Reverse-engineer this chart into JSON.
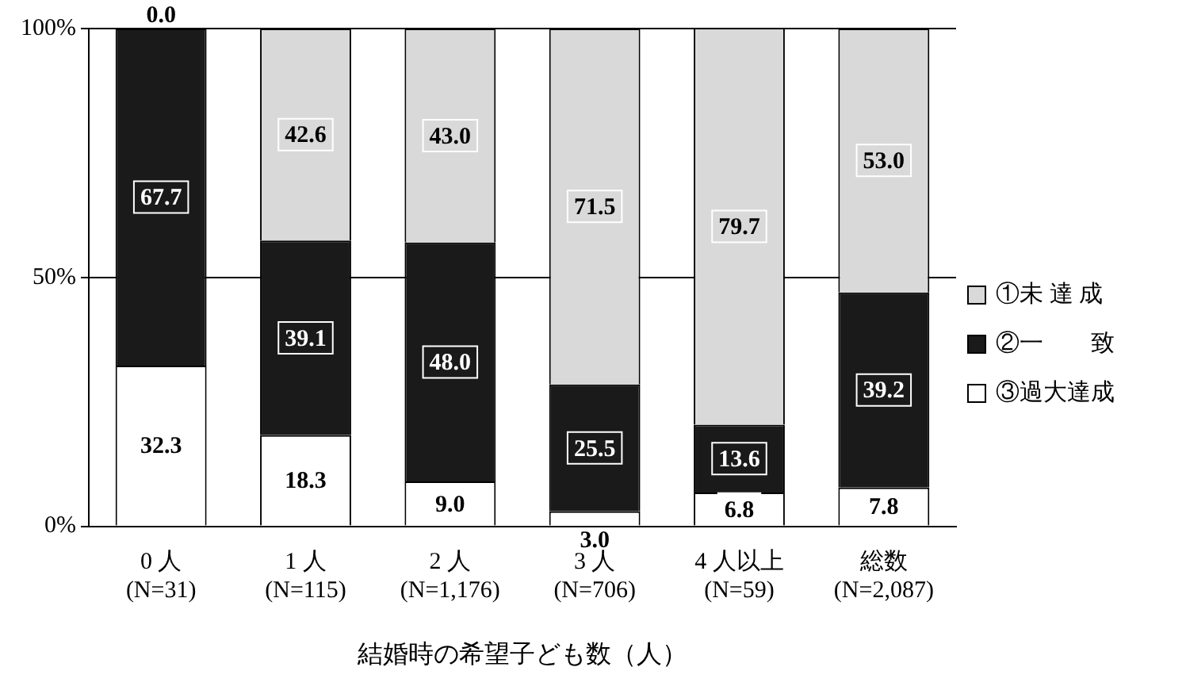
{
  "chart_data": {
    "type": "bar",
    "stacked": true,
    "xlabel": "結婚時の希望子ども数（人）",
    "categories": [
      "0 人\n(N=31)",
      "1 人\n(N=115)",
      "2 人\n(N=1,176)",
      "3 人\n(N=706)",
      "4 人以上\n(N=59)",
      "総数\n(N=2,087)"
    ],
    "series": [
      {
        "name": "③過大達成",
        "color": "#ffffff",
        "values": [
          32.3,
          18.3,
          9.0,
          3.0,
          6.8,
          7.8
        ],
        "value_labels": [
          "32.3",
          "18.3",
          "9.0",
          "3.0",
          "6.8",
          "7.8"
        ]
      },
      {
        "name": "②一　　致",
        "color": "#1a1a1a",
        "values": [
          67.7,
          39.1,
          48.0,
          25.5,
          13.6,
          39.2
        ],
        "value_labels": [
          "67.7",
          "39.1",
          "48.0",
          "25.5",
          "13.6",
          "39.2"
        ]
      },
      {
        "name": "①未 達 成",
        "color": "#d9d9d9",
        "values": [
          0.0,
          42.6,
          43.0,
          71.5,
          79.7,
          53.0
        ],
        "value_labels": [
          "0.0",
          "42.6",
          "43.0",
          "71.5",
          "79.7",
          "53.0"
        ]
      }
    ],
    "ylim": [
      0,
      100
    ],
    "yticks": [
      {
        "value": 0,
        "label": "0%"
      },
      {
        "value": 50,
        "label": "50%"
      },
      {
        "value": 100,
        "label": "100%"
      }
    ],
    "grid": "y",
    "legend": "right"
  }
}
